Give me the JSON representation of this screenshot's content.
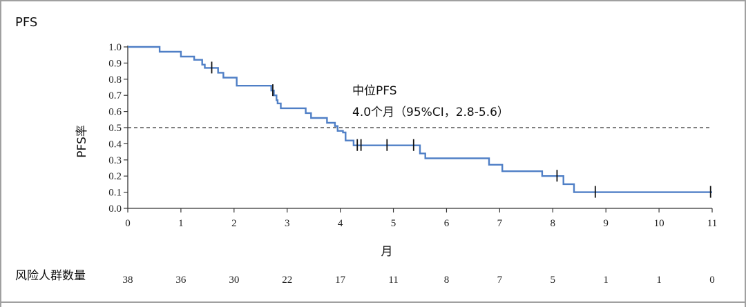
{
  "panel_label": "PFS",
  "chart_data": {
    "type": "line",
    "subtype": "kaplan-meier",
    "ylabel": "PFS率",
    "xlabel": "月",
    "xlim": [
      0,
      11
    ],
    "ylim": [
      0,
      1.0
    ],
    "x_ticks": [
      "0",
      "1",
      "2",
      "3",
      "4",
      "5",
      "6",
      "7",
      "8",
      "9",
      "10",
      "11"
    ],
    "y_ticks": [
      "0.0",
      "0.1",
      "0.2",
      "0.3",
      "0.4",
      "0.5",
      "0.6",
      "0.7",
      "0.8",
      "0.9",
      "1.0"
    ],
    "line_color": "#4f7fc6",
    "reference_line": {
      "y": 0.5,
      "style": "dashed"
    },
    "annotation": {
      "line1": "中位PFS",
      "line2": "4.0个月（95%CI，2.8-5.6）"
    },
    "series": [
      {
        "step_points": [
          [
            0,
            1.0
          ],
          [
            0.6,
            1.0
          ],
          [
            0.6,
            0.97
          ],
          [
            1.0,
            0.97
          ],
          [
            1.0,
            0.94
          ],
          [
            1.25,
            0.94
          ],
          [
            1.25,
            0.92
          ],
          [
            1.4,
            0.92
          ],
          [
            1.4,
            0.89
          ],
          [
            1.45,
            0.89
          ],
          [
            1.45,
            0.87
          ],
          [
            1.7,
            0.87
          ],
          [
            1.7,
            0.84
          ],
          [
            1.8,
            0.84
          ],
          [
            1.8,
            0.81
          ],
          [
            2.05,
            0.81
          ],
          [
            2.05,
            0.76
          ],
          [
            2.7,
            0.76
          ],
          [
            2.7,
            0.73
          ],
          [
            2.75,
            0.73
          ],
          [
            2.75,
            0.7
          ],
          [
            2.8,
            0.7
          ],
          [
            2.8,
            0.67
          ],
          [
            2.82,
            0.67
          ],
          [
            2.82,
            0.65
          ],
          [
            2.88,
            0.65
          ],
          [
            2.88,
            0.62
          ],
          [
            3.35,
            0.62
          ],
          [
            3.35,
            0.59
          ],
          [
            3.45,
            0.59
          ],
          [
            3.45,
            0.56
          ],
          [
            3.75,
            0.56
          ],
          [
            3.75,
            0.53
          ],
          [
            3.9,
            0.53
          ],
          [
            3.9,
            0.51
          ],
          [
            3.95,
            0.51
          ],
          [
            3.95,
            0.48
          ],
          [
            4.05,
            0.48
          ],
          [
            4.05,
            0.47
          ],
          [
            4.1,
            0.47
          ],
          [
            4.1,
            0.42
          ],
          [
            4.25,
            0.42
          ],
          [
            4.25,
            0.39
          ],
          [
            5.5,
            0.39
          ],
          [
            5.5,
            0.34
          ],
          [
            5.6,
            0.34
          ],
          [
            5.6,
            0.31
          ],
          [
            6.8,
            0.31
          ],
          [
            6.8,
            0.27
          ],
          [
            7.05,
            0.27
          ],
          [
            7.05,
            0.23
          ],
          [
            7.8,
            0.23
          ],
          [
            7.8,
            0.2
          ],
          [
            8.2,
            0.2
          ],
          [
            8.2,
            0.15
          ],
          [
            8.4,
            0.15
          ],
          [
            8.4,
            0.1
          ],
          [
            11.0,
            0.1
          ]
        ],
        "censor_marks": [
          [
            1.58,
            0.87
          ],
          [
            2.73,
            0.73
          ],
          [
            4.32,
            0.39
          ],
          [
            4.39,
            0.39
          ],
          [
            4.88,
            0.39
          ],
          [
            5.38,
            0.39
          ],
          [
            8.08,
            0.2
          ],
          [
            8.8,
            0.1
          ],
          [
            10.97,
            0.1
          ]
        ]
      }
    ],
    "risk_table": {
      "label": "风险人群数量",
      "values": [
        "38",
        "36",
        "30",
        "22",
        "17",
        "11",
        "8",
        "7",
        "5",
        "1",
        "1",
        "0"
      ]
    }
  }
}
